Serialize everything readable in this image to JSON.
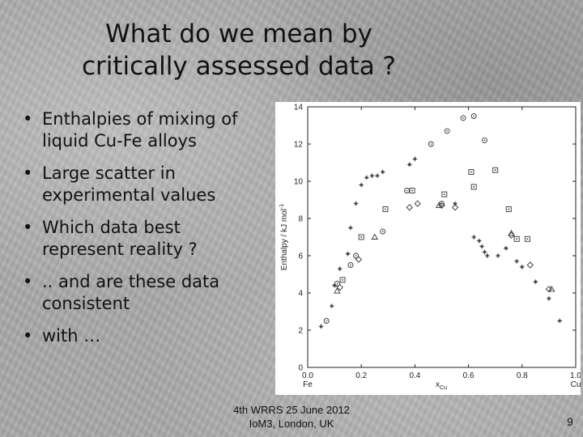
{
  "slide": {
    "title_line1": "What do we mean by",
    "title_line2": "critically assessed data ?",
    "bullet_glyph": "•",
    "bullets": [
      [
        "Enthalpies of mixing of",
        "liquid Cu-Fe alloys"
      ],
      [
        "Large scatter in",
        "experimental values"
      ],
      [
        "Which data best",
        "represent reality ?"
      ],
      [
        ".. and are these data",
        "consistent"
      ],
      [
        "with …"
      ]
    ],
    "footer_line1": "4th WRRS 25 June 2012",
    "footer_line2": "IoM3, London, UK",
    "page_number": "9"
  },
  "chart_data": {
    "type": "scatter",
    "title": "",
    "xlabel": "x",
    "xlabel_sub": "Cu",
    "ylabel": "Enthalpy / kJ mol",
    "ylabel_sup": "-1",
    "xlim": [
      0.0,
      1.0
    ],
    "ylim": [
      0,
      14
    ],
    "x_ticks": [
      "0.0",
      "0.2",
      "0.4",
      "0.6",
      "0.8",
      "1.0"
    ],
    "x_tick_sublabels": {
      "0.0": "Fe",
      "1.0": "Cu"
    },
    "y_ticks": [
      "0",
      "2",
      "4",
      "6",
      "8",
      "10",
      "12",
      "14"
    ],
    "grid": false,
    "series": [
      {
        "marker": "plus-star",
        "points": [
          [
            0.05,
            2.2
          ],
          [
            0.09,
            3.3
          ],
          [
            0.1,
            4.4
          ],
          [
            0.12,
            5.3
          ],
          [
            0.15,
            6.1
          ],
          [
            0.16,
            7.5
          ],
          [
            0.18,
            8.8
          ],
          [
            0.2,
            9.8
          ],
          [
            0.22,
            10.2
          ],
          [
            0.24,
            10.3
          ],
          [
            0.26,
            10.3
          ],
          [
            0.28,
            10.5
          ],
          [
            0.38,
            10.9
          ],
          [
            0.4,
            11.2
          ],
          [
            0.55,
            8.8
          ],
          [
            0.62,
            7.0
          ],
          [
            0.64,
            6.8
          ],
          [
            0.65,
            6.5
          ],
          [
            0.66,
            6.2
          ],
          [
            0.67,
            6.0
          ],
          [
            0.71,
            6.0
          ],
          [
            0.74,
            6.4
          ],
          [
            0.78,
            5.7
          ],
          [
            0.8,
            5.4
          ],
          [
            0.85,
            4.6
          ],
          [
            0.9,
            3.7
          ],
          [
            0.94,
            2.5
          ]
        ]
      },
      {
        "marker": "circle",
        "points": [
          [
            0.07,
            2.5
          ],
          [
            0.11,
            4.5
          ],
          [
            0.16,
            5.5
          ],
          [
            0.18,
            6.0
          ],
          [
            0.28,
            7.3
          ],
          [
            0.37,
            9.5
          ],
          [
            0.46,
            12.0
          ],
          [
            0.52,
            12.7
          ],
          [
            0.58,
            13.4
          ],
          [
            0.62,
            13.5
          ],
          [
            0.66,
            12.2
          ],
          [
            0.5,
            8.8
          ]
        ]
      },
      {
        "marker": "square",
        "points": [
          [
            0.13,
            4.7
          ],
          [
            0.2,
            7.0
          ],
          [
            0.29,
            8.5
          ],
          [
            0.39,
            9.5
          ],
          [
            0.51,
            9.3
          ],
          [
            0.61,
            10.5
          ],
          [
            0.62,
            9.7
          ],
          [
            0.7,
            10.6
          ],
          [
            0.75,
            8.5
          ],
          [
            0.78,
            6.9
          ],
          [
            0.82,
            6.9
          ]
        ]
      },
      {
        "marker": "diamond",
        "points": [
          [
            0.12,
            4.3
          ],
          [
            0.19,
            5.8
          ],
          [
            0.38,
            8.6
          ],
          [
            0.41,
            8.8
          ],
          [
            0.5,
            8.7
          ],
          [
            0.55,
            8.6
          ],
          [
            0.76,
            7.1
          ],
          [
            0.83,
            5.5
          ],
          [
            0.9,
            4.2
          ]
        ]
      },
      {
        "marker": "triangle",
        "points": [
          [
            0.11,
            4.1
          ],
          [
            0.25,
            7.0
          ],
          [
            0.49,
            8.7
          ],
          [
            0.76,
            7.2
          ],
          [
            0.91,
            4.2
          ]
        ]
      }
    ]
  }
}
